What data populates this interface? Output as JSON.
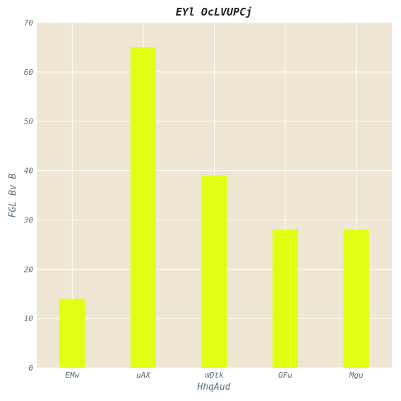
{
  "chart_data": {
    "type": "bar",
    "title": "EYl OcLVUPCj",
    "xlabel": "HhqAud",
    "ylabel": "FGL Bv B",
    "categories": [
      "EMw",
      "uAX",
      "mDtk",
      "OFu",
      "Mgu"
    ],
    "values": [
      14,
      65,
      39,
      28,
      28
    ],
    "ylim": [
      0,
      70
    ],
    "yticks": [
      0,
      10,
      20,
      30,
      40,
      50,
      60,
      70
    ],
    "grid": true,
    "colors": {
      "bar": "#e1ff14",
      "plot_background": "#efe6d3",
      "grid": "#ffffff",
      "text": "#5a6e7a"
    }
  }
}
